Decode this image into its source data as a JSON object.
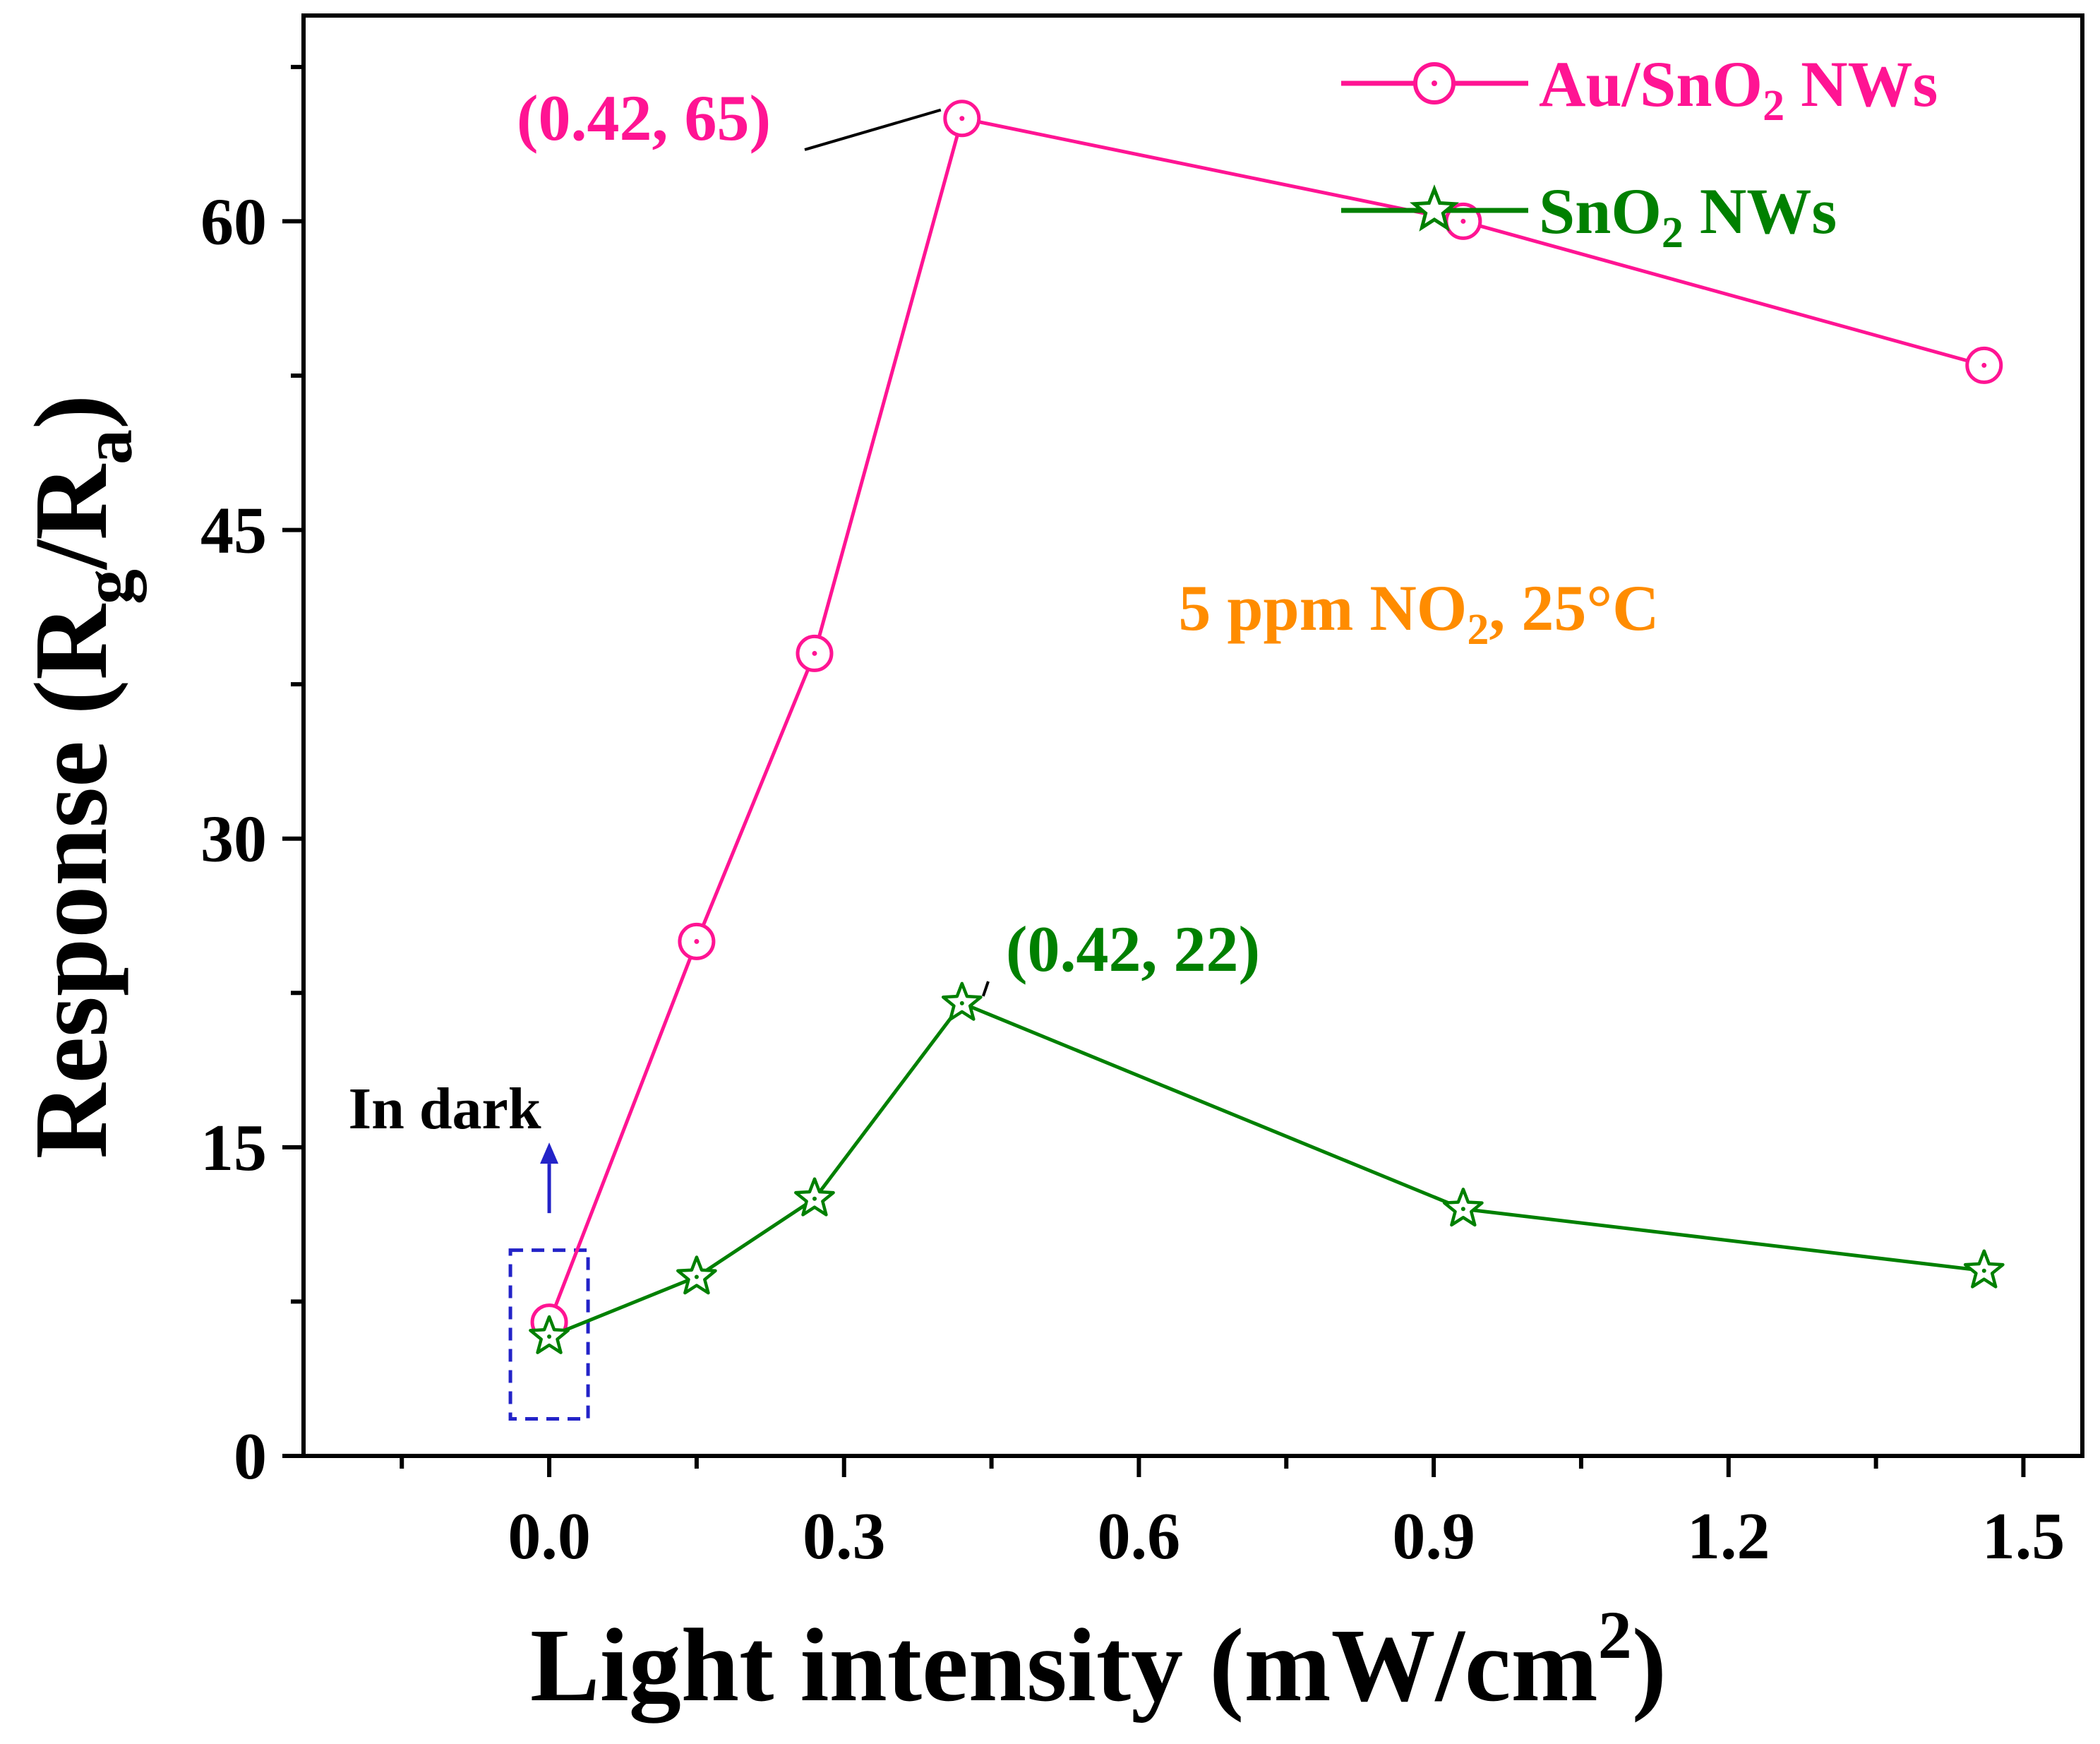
{
  "chart_data": {
    "type": "line",
    "title": "",
    "xlabel": "Light intensity (mW/cm²)",
    "xlabel_main": "Light intensity (mW/cm",
    "xlabel_sup": "2",
    "xlabel_close": ")",
    "ylabel": "Response (Rg/Ra)",
    "ylabel_parts": {
      "prefix": "Response (R",
      "sub1": "g",
      "mid": "/R",
      "sub2": "a",
      "suffix": ")"
    },
    "xlim": [
      -0.25,
      1.56
    ],
    "ylim": [
      0,
      70
    ],
    "x_ticks": [
      0.0,
      0.3,
      0.6,
      0.9,
      1.2,
      1.5
    ],
    "x_tick_labels": [
      "0.0",
      "0.3",
      "0.6",
      "0.9",
      "1.2",
      "1.5"
    ],
    "y_ticks": [
      0,
      15,
      30,
      45,
      60
    ],
    "y_tick_labels": [
      "0",
      "15",
      "30",
      "45",
      "60"
    ],
    "grid": false,
    "legend_position": "top-right",
    "series": [
      {
        "name": "Au/SnO2 NWs",
        "legend_main": "Au/SnO",
        "legend_sub": "2",
        "legend_suffix": " NWs",
        "color": "#ff1493",
        "marker": "circle",
        "x": [
          0.0,
          0.15,
          0.27,
          0.42,
          0.93,
          1.46
        ],
        "values": [
          6.5,
          25,
          39,
          65,
          60,
          53
        ]
      },
      {
        "name": "SnO2 NWs",
        "legend_main": "SnO",
        "legend_sub": "2",
        "legend_suffix": " NWs",
        "color": "#008000",
        "marker": "star",
        "x": [
          0.0,
          0.15,
          0.27,
          0.42,
          0.93,
          1.46
        ],
        "values": [
          5.8,
          8.7,
          12.5,
          22,
          12,
          9
        ]
      }
    ],
    "annotations": {
      "peak_au": {
        "text": "(0.42, 65)",
        "color": "#ff1493",
        "x": 0.42,
        "y": 65
      },
      "peak_sn": {
        "text": "(0.42, 22)",
        "color": "#008000",
        "x": 0.42,
        "y": 22
      },
      "condition": {
        "main": "5 ppm NO",
        "sub": "2",
        "suffix": ", 25°C",
        "color": "#ff8c00"
      },
      "dark": {
        "text": "In dark",
        "color": "#000000",
        "box_color": "#2323c8"
      }
    }
  }
}
